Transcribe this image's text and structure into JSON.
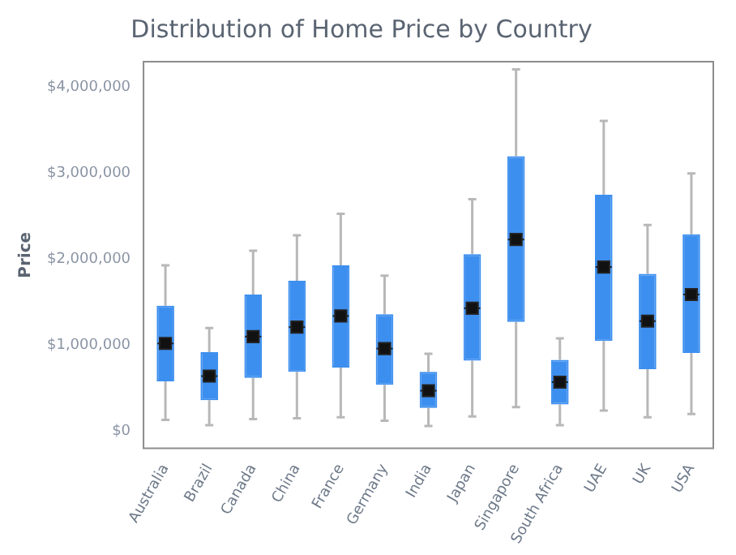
{
  "chart_data": {
    "type": "box",
    "title": "Distribution of Home Price by Country",
    "ylabel": "Price",
    "categories": [
      "Australia",
      "Brazil",
      "Canada",
      "China",
      "France",
      "Germany",
      "India",
      "Japan",
      "Singapore",
      "South Africa",
      "UAE",
      "UK",
      "USA"
    ],
    "color": "#3d8fef",
    "marker": "square",
    "boxes": [
      {
        "low": 130000,
        "q1": 580000,
        "median": 1020000,
        "mean": 1020000,
        "q3": 1460000,
        "high": 1930000
      },
      {
        "low": 70000,
        "q1": 360000,
        "median": 640000,
        "mean": 640000,
        "q3": 920000,
        "high": 1200000
      },
      {
        "low": 140000,
        "q1": 620000,
        "median": 1100000,
        "mean": 1100000,
        "q3": 1590000,
        "high": 2100000
      },
      {
        "low": 150000,
        "q1": 690000,
        "median": 1210000,
        "mean": 1210000,
        "q3": 1750000,
        "high": 2280000
      },
      {
        "low": 160000,
        "q1": 740000,
        "median": 1340000,
        "mean": 1340000,
        "q3": 1930000,
        "high": 2530000
      },
      {
        "low": 120000,
        "q1": 540000,
        "median": 960000,
        "mean": 960000,
        "q3": 1360000,
        "high": 1810000
      },
      {
        "low": 60000,
        "q1": 270000,
        "median": 470000,
        "mean": 470000,
        "q3": 690000,
        "high": 900000
      },
      {
        "low": 170000,
        "q1": 820000,
        "median": 1430000,
        "mean": 1430000,
        "q3": 2060000,
        "high": 2700000
      },
      {
        "low": 280000,
        "q1": 1270000,
        "median": 2230000,
        "mean": 2230000,
        "q3": 3200000,
        "high": 4210000
      },
      {
        "low": 70000,
        "q1": 310000,
        "median": 570000,
        "mean": 570000,
        "q3": 830000,
        "high": 1080000
      },
      {
        "low": 240000,
        "q1": 1050000,
        "median": 1910000,
        "mean": 1910000,
        "q3": 2750000,
        "high": 3610000
      },
      {
        "low": 160000,
        "q1": 720000,
        "median": 1280000,
        "mean": 1280000,
        "q3": 1830000,
        "high": 2400000
      },
      {
        "low": 200000,
        "q1": 910000,
        "median": 1590000,
        "mean": 1590000,
        "q3": 2290000,
        "high": 3000000
      }
    ],
    "ylim": [
      -200000,
      4300000
    ],
    "yticks": [
      {
        "value": 0,
        "label": "$0"
      },
      {
        "value": 1000000,
        "label": "$1,000,000"
      },
      {
        "value": 2000000,
        "label": "$2,000,000"
      },
      {
        "value": 3000000,
        "label": "$3,000,000"
      },
      {
        "value": 4000000,
        "label": "$4,000,000"
      }
    ]
  }
}
